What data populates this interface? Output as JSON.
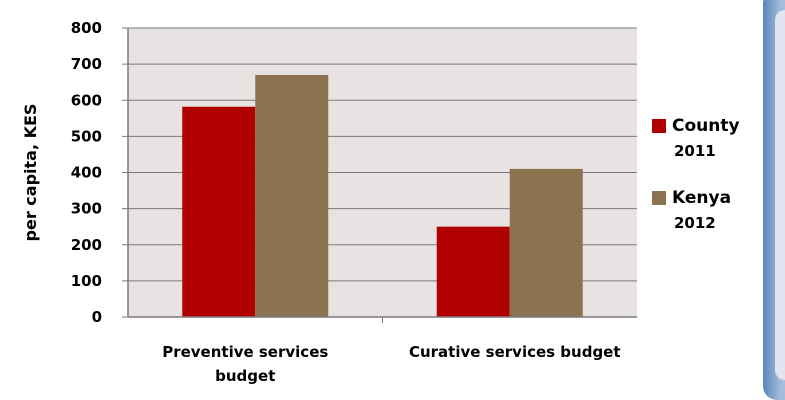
{
  "chart_data": {
    "type": "bar",
    "categories": [
      "Preventive services budget",
      "Curative services budget"
    ],
    "series": [
      {
        "name": "County",
        "values": [
          582,
          250
        ],
        "color": "#b00000"
      },
      {
        "name": "Kenya",
        "values": [
          670,
          410
        ],
        "color": "#8b7350"
      }
    ],
    "legend_years": [
      "2011",
      "2012"
    ],
    "xlabel": "",
    "ylabel": "per capita, KES",
    "ylim": [
      0,
      800
    ],
    "yticks": [
      "0",
      "100",
      "200",
      "300",
      "400",
      "500",
      "600",
      "700",
      "800"
    ],
    "grid": true,
    "plot_background": "#e8e2e2",
    "legend_position": "right"
  }
}
